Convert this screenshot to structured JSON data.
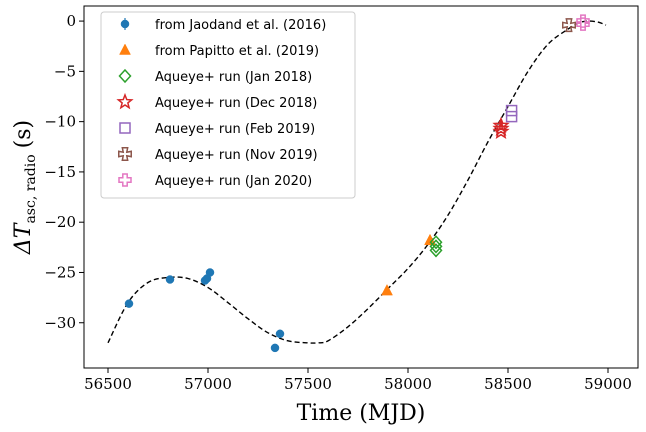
{
  "chart_data": {
    "type": "scatter",
    "xlabel": "Time (MJD)",
    "ylabel_main": "ΔT",
    "ylabel_sub": "asc, radio",
    "ylabel_unit": "(s)",
    "xlim": [
      56380,
      59150
    ],
    "ylim": [
      -34.5,
      1.5
    ],
    "xticks": [
      56500,
      57000,
      57500,
      58000,
      58500,
      59000
    ],
    "yticks": [
      0,
      -5,
      -10,
      -15,
      -20,
      -25,
      -30
    ],
    "ytick_labels": [
      "0",
      "−5",
      "−10",
      "−15",
      "−20",
      "−25",
      "−30"
    ],
    "legend_position": "upper-left",
    "series": [
      {
        "name": "from Jaodand et al. (2016)",
        "marker": "circle",
        "filled": true,
        "color": "#1f77b4",
        "x": [
          56605,
          56810,
          56985,
          56995,
          57010,
          57335,
          57360
        ],
        "y": [
          -28.1,
          -25.7,
          -25.8,
          -25.6,
          -25.0,
          -32.5,
          -31.1
        ]
      },
      {
        "name": "from Papitto et al. (2019)",
        "marker": "triangle",
        "filled": true,
        "color": "#ff7f0e",
        "x": [
          57895,
          58110
        ],
        "y": [
          -26.8,
          -21.8
        ]
      },
      {
        "name": "Aqueye+ run (Jan 2018)",
        "marker": "diamond",
        "filled": false,
        "color": "#2ca02c",
        "x": [
          58140,
          58140,
          58140
        ],
        "y": [
          -22.0,
          -22.4,
          -22.8
        ]
      },
      {
        "name": "Aqueye+ run (Dec 2018)",
        "marker": "star",
        "filled": false,
        "color": "#d62728",
        "x": [
          58465,
          58465,
          58465
        ],
        "y": [
          -10.4,
          -10.7,
          -11.0
        ]
      },
      {
        "name": "Aqueye+ run (Feb 2019)",
        "marker": "square",
        "filled": false,
        "color": "#9467bd",
        "x": [
          58518,
          58518
        ],
        "y": [
          -8.9,
          -9.5
        ]
      },
      {
        "name": "Aqueye+ run (Nov 2019)",
        "marker": "x",
        "filled": false,
        "color": "#8c564b",
        "x": [
          58805
        ],
        "y": [
          -0.4
        ]
      },
      {
        "name": "Aqueye+ run (Jan 2020)",
        "marker": "plus",
        "filled": false,
        "color": "#e377c2",
        "x": [
          58875,
          58875
        ],
        "y": [
          0.0,
          -0.3
        ]
      }
    ],
    "fit_curve": {
      "style": "dashed",
      "color": "#000000",
      "x": [
        56500,
        56600,
        56700,
        56800,
        56900,
        57000,
        57100,
        57200,
        57300,
        57400,
        57500,
        57550,
        57600,
        57700,
        57800,
        57900,
        58000,
        58100,
        58200,
        58300,
        58400,
        58500,
        58600,
        58700,
        58800,
        58850,
        58900,
        58950,
        58990
      ],
      "y": [
        -32.0,
        -28.0,
        -26.0,
        -25.5,
        -25.6,
        -26.5,
        -28.0,
        -29.6,
        -31.0,
        -31.8,
        -32.0,
        -32.0,
        -31.8,
        -30.4,
        -28.6,
        -26.6,
        -24.6,
        -22.2,
        -19.3,
        -15.8,
        -12.0,
        -8.5,
        -5.0,
        -2.3,
        -0.8,
        -0.2,
        0.0,
        -0.1,
        -0.4
      ]
    }
  }
}
